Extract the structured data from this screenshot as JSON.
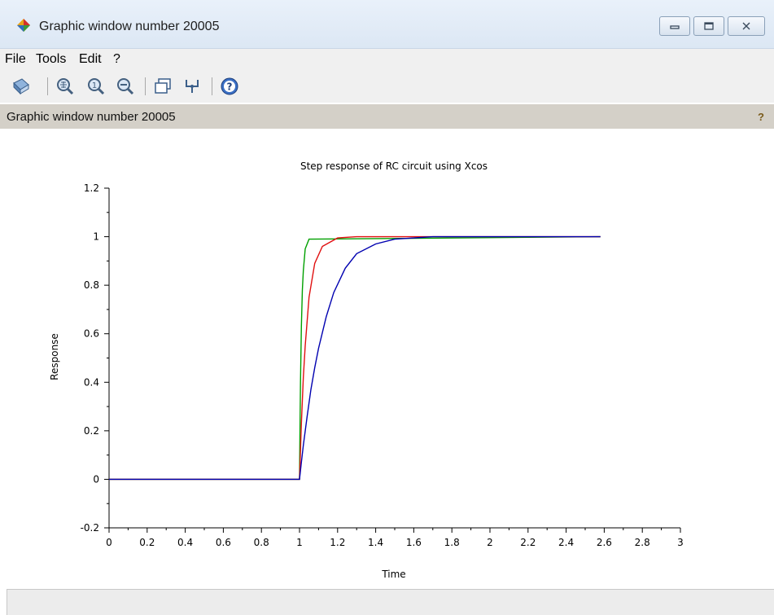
{
  "window": {
    "title": "Graphic window number 20005"
  },
  "menu": {
    "items": [
      "File",
      "Tools",
      "Edit",
      "?"
    ]
  },
  "toolbar": {
    "buttons": [
      "rotate-icon",
      "zoom-icon",
      "zoom-in-icon",
      "zoom-out-icon",
      "figure-window-icon",
      "datatip-icon",
      "help-icon"
    ]
  },
  "infobar": {
    "text": "Graphic window number 20005",
    "help": "?"
  },
  "chart_data": {
    "type": "line",
    "title": "Step response of RC circuit using Xcos",
    "xlabel": "Time",
    "ylabel": "Response",
    "xlim": [
      0,
      3
    ],
    "ylim": [
      -0.2,
      1.2
    ],
    "xticks": [
      "0",
      "0.2",
      "0.4",
      "0.6",
      "0.8",
      "1",
      "1.2",
      "1.4",
      "1.6",
      "1.8",
      "2",
      "2.2",
      "2.4",
      "2.6",
      "2.8",
      "3"
    ],
    "yticks": [
      "-0.2",
      "0",
      "0.2",
      "0.4",
      "0.6",
      "0.8",
      "1",
      "1.2"
    ],
    "grid": false,
    "series": [
      {
        "color": "#00a000",
        "x": [
          0,
          1,
          1.002,
          1.005,
          1.01,
          1.015,
          1.02,
          1.03,
          1.05,
          2.58
        ],
        "y": [
          0,
          0,
          0.18,
          0.4,
          0.63,
          0.78,
          0.86,
          0.95,
          0.99,
          1
        ]
      },
      {
        "color": "#e01010",
        "x": [
          0,
          1,
          1.005,
          1.01,
          1.02,
          1.03,
          1.05,
          1.08,
          1.12,
          1.2,
          1.3,
          2.58
        ],
        "y": [
          0,
          0,
          0.12,
          0.23,
          0.42,
          0.55,
          0.75,
          0.89,
          0.96,
          0.995,
          1,
          1
        ]
      },
      {
        "color": "#0000b0",
        "x": [
          0,
          1,
          1.01,
          1.02,
          1.04,
          1.06,
          1.08,
          1.1,
          1.14,
          1.18,
          1.24,
          1.3,
          1.4,
          1.5,
          1.7,
          2.58
        ],
        "y": [
          0,
          0,
          0.07,
          0.14,
          0.26,
          0.37,
          0.46,
          0.54,
          0.67,
          0.77,
          0.87,
          0.93,
          0.97,
          0.99,
          1,
          1
        ]
      }
    ]
  }
}
